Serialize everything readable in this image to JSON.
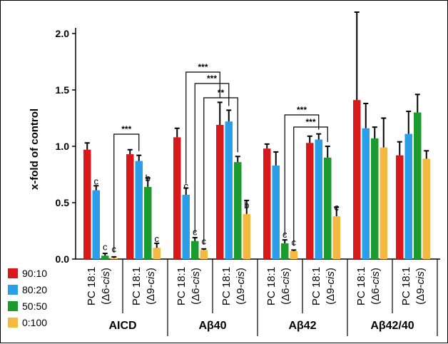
{
  "chart_data": {
    "type": "bar",
    "ylabel": "x-fold of control",
    "ylim": [
      0,
      2.0
    ],
    "yticks": [
      "0.0",
      "0.5",
      "1.0",
      "1.5",
      "2.0"
    ],
    "grid": false,
    "legend_placement": "bottom-left",
    "series": [
      {
        "name": "90:10",
        "color": "#d7191c"
      },
      {
        "name": "80:20",
        "color": "#2a9ee6"
      },
      {
        "name": "50:50",
        "color": "#1b9a2e"
      },
      {
        "name": "0:100",
        "color": "#f5b942"
      }
    ],
    "subgroup_labels": [
      {
        "line1": "PC 18:1",
        "line2_prefix": "(Δ6-",
        "line2_italic": "cis",
        "line2_suffix": ")"
      },
      {
        "line1": "PC 18:1",
        "line2_prefix": "(Δ9-",
        "line2_italic": "cis",
        "line2_suffix": ")"
      }
    ],
    "groups": [
      {
        "name": "AICD",
        "subgroups": [
          {
            "values": [
              0.97,
              0.61,
              0.03,
              0.01
            ],
            "errors": [
              0.06,
              0.04,
              0.02,
              0.01
            ],
            "letters": [
              "",
              "c",
              "c",
              "c"
            ]
          },
          {
            "values": [
              0.93,
              0.87,
              0.64,
              0.1
            ],
            "errors": [
              0.04,
              0.05,
              0.08,
              0.04
            ],
            "letters": [
              "",
              "",
              "b",
              "c"
            ]
          }
        ]
      },
      {
        "name": "Aβ40",
        "subgroups": [
          {
            "values": [
              1.08,
              0.57,
              0.16,
              0.08
            ],
            "errors": [
              0.08,
              0.06,
              0.03,
              0.01
            ],
            "letters": [
              "",
              "c",
              "c",
              "c"
            ]
          },
          {
            "values": [
              1.19,
              1.22,
              0.86,
              0.4
            ],
            "errors": [
              0.2,
              0.1,
              0.05,
              0.12
            ],
            "letters": [
              "",
              "",
              "",
              "b"
            ]
          }
        ]
      },
      {
        "name": "Aβ42",
        "subgroups": [
          {
            "values": [
              0.98,
              0.83,
              0.14,
              0.07
            ],
            "errors": [
              0.04,
              0.12,
              0.03,
              0.01
            ],
            "letters": [
              "",
              "",
              "c",
              "c"
            ]
          },
          {
            "values": [
              1.03,
              1.06,
              0.9,
              0.38
            ],
            "errors": [
              0.06,
              0.05,
              0.1,
              0.08
            ],
            "letters": [
              "",
              "",
              "",
              "c"
            ]
          }
        ]
      },
      {
        "name": "Aβ42/40",
        "subgroups": [
          {
            "values": [
              1.41,
              1.16,
              1.07,
              0.99
            ],
            "errors": [
              0.78,
              0.22,
              0.1,
              0.26
            ],
            "letters": [
              "",
              "",
              "",
              ""
            ]
          },
          {
            "values": [
              0.92,
              1.11,
              1.3,
              0.89
            ],
            "errors": [
              0.12,
              0.2,
              0.16,
              0.07
            ],
            "letters": [
              "",
              "",
              "",
              ""
            ]
          }
        ]
      }
    ],
    "annotations": [
      {
        "text": "***",
        "group": 0,
        "from": [
          0,
          3
        ],
        "to": [
          1,
          1
        ]
      },
      {
        "text": "***",
        "group": 1,
        "from": [
          0,
          1
        ],
        "to": [
          1,
          0
        ]
      },
      {
        "text": "***",
        "group": 1,
        "from": [
          0,
          2
        ],
        "to": [
          1,
          1
        ]
      },
      {
        "text": "**",
        "group": 1,
        "from": [
          0,
          3
        ],
        "to": [
          1,
          2
        ]
      },
      {
        "text": "***",
        "group": 2,
        "from": [
          0,
          2
        ],
        "to": [
          1,
          1
        ]
      },
      {
        "text": "***",
        "group": 2,
        "from": [
          0,
          3
        ],
        "to": [
          1,
          2
        ]
      }
    ]
  }
}
